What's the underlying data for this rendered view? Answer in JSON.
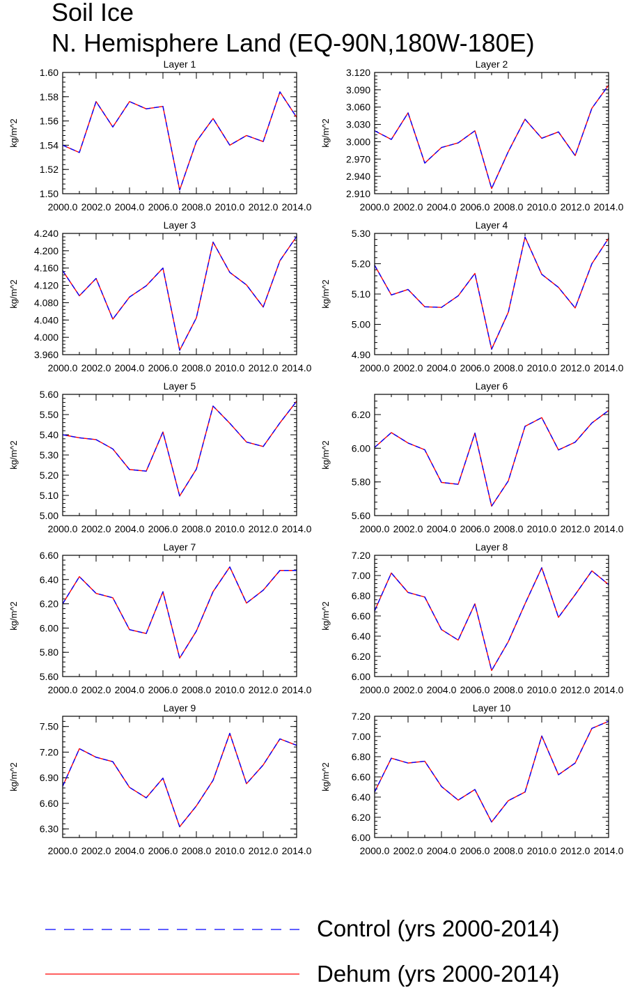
{
  "title_line1": "Soil Ice",
  "title_line2": "N. Hemisphere Land (EQ-90N,180W-180E)",
  "legend": [
    {
      "label": "Control (yrs 2000-2014)",
      "color": "#0000ff",
      "style": "dashed"
    },
    {
      "label": "Dehum (yrs 2000-2014)",
      "color": "#ff0000",
      "style": "solid"
    }
  ],
  "chart_data": [
    {
      "type": "line",
      "title": "Layer 1",
      "xlabel": "",
      "ylabel": "kg/m^2",
      "x": [
        2000,
        2001,
        2002,
        2003,
        2004,
        2005,
        2006,
        2007,
        2008,
        2009,
        2010,
        2011,
        2012,
        2013,
        2014
      ],
      "xticks": [
        "2000.0",
        "2002.0",
        "2004.0",
        "2006.0",
        "2008.0",
        "2010.0",
        "2012.0",
        "2014.0"
      ],
      "ylim": [
        1.5,
        1.6
      ],
      "yticks": [
        "1.50",
        "1.52",
        "1.54",
        "1.56",
        "1.58",
        "1.60"
      ],
      "series": [
        {
          "name": "Control (yrs 2000-2014)",
          "values": [
            1.54,
            1.534,
            1.576,
            1.555,
            1.576,
            1.57,
            1.572,
            1.503,
            1.543,
            1.562,
            1.54,
            1.548,
            1.543,
            1.584,
            1.563
          ]
        },
        {
          "name": "Dehum (yrs 2000-2014)",
          "values": [
            1.54,
            1.534,
            1.576,
            1.555,
            1.576,
            1.57,
            1.572,
            1.503,
            1.543,
            1.562,
            1.54,
            1.548,
            1.543,
            1.584,
            1.563
          ]
        }
      ]
    },
    {
      "type": "line",
      "title": "Layer 2",
      "xlabel": "",
      "ylabel": "kg/m^2",
      "x": [
        2000,
        2001,
        2002,
        2003,
        2004,
        2005,
        2006,
        2007,
        2008,
        2009,
        2010,
        2011,
        2012,
        2013,
        2014
      ],
      "xticks": [
        "2000.0",
        "2002.0",
        "2004.0",
        "2006.0",
        "2008.0",
        "2010.0",
        "2012.0",
        "2014.0"
      ],
      "ylim": [
        2.91,
        3.12
      ],
      "yticks": [
        "2.910",
        "2.940",
        "2.970",
        "3.000",
        "3.030",
        "3.060",
        "3.090",
        "3.120"
      ],
      "series": [
        {
          "name": "Control (yrs 2000-2014)",
          "values": [
            3.019,
            3.004,
            3.05,
            2.963,
            2.99,
            2.998,
            3.019,
            2.919,
            2.983,
            3.039,
            3.006,
            3.017,
            2.976,
            3.058,
            3.098
          ]
        },
        {
          "name": "Dehum (yrs 2000-2014)",
          "values": [
            3.019,
            3.004,
            3.05,
            2.963,
            2.99,
            2.998,
            3.019,
            2.919,
            2.983,
            3.039,
            3.006,
            3.017,
            2.976,
            3.058,
            3.098
          ]
        }
      ]
    },
    {
      "type": "line",
      "title": "Layer 3",
      "xlabel": "",
      "ylabel": "kg/m^2",
      "x": [
        2000,
        2001,
        2002,
        2003,
        2004,
        2005,
        2006,
        2007,
        2008,
        2009,
        2010,
        2011,
        2012,
        2013,
        2014
      ],
      "xticks": [
        "2000.0",
        "2002.0",
        "2004.0",
        "2006.0",
        "2008.0",
        "2010.0",
        "2012.0",
        "2014.0"
      ],
      "ylim": [
        3.96,
        4.24
      ],
      "yticks": [
        "3.960",
        "4.000",
        "4.040",
        "4.080",
        "4.120",
        "4.160",
        "4.200",
        "4.240"
      ],
      "series": [
        {
          "name": "Control (yrs 2000-2014)",
          "values": [
            4.154,
            4.096,
            4.136,
            4.042,
            4.093,
            4.119,
            4.16,
            3.97,
            4.045,
            4.22,
            4.15,
            4.121,
            4.07,
            4.177,
            4.233
          ]
        },
        {
          "name": "Dehum (yrs 2000-2014)",
          "values": [
            4.154,
            4.096,
            4.136,
            4.042,
            4.093,
            4.119,
            4.16,
            3.97,
            4.045,
            4.22,
            4.15,
            4.121,
            4.07,
            4.177,
            4.233
          ]
        }
      ]
    },
    {
      "type": "line",
      "title": "Layer 4",
      "xlabel": "",
      "ylabel": "kg/m^2",
      "x": [
        2000,
        2001,
        2002,
        2003,
        2004,
        2005,
        2006,
        2007,
        2008,
        2009,
        2010,
        2011,
        2012,
        2013,
        2014
      ],
      "xticks": [
        "2000.0",
        "2002.0",
        "2004.0",
        "2006.0",
        "2008.0",
        "2010.0",
        "2012.0",
        "2014.0"
      ],
      "ylim": [
        4.9,
        5.3
      ],
      "yticks": [
        "4.90",
        "5.00",
        "5.10",
        "5.20",
        "5.30"
      ],
      "series": [
        {
          "name": "Control (yrs 2000-2014)",
          "values": [
            5.195,
            5.097,
            5.115,
            5.058,
            5.056,
            5.094,
            5.168,
            4.918,
            5.04,
            5.288,
            5.165,
            5.122,
            5.054,
            5.2,
            5.284
          ]
        },
        {
          "name": "Dehum (yrs 2000-2014)",
          "values": [
            5.195,
            5.097,
            5.115,
            5.058,
            5.056,
            5.094,
            5.168,
            4.918,
            5.04,
            5.288,
            5.165,
            5.122,
            5.054,
            5.2,
            5.284
          ]
        }
      ]
    },
    {
      "type": "line",
      "title": "Layer 5",
      "xlabel": "",
      "ylabel": "kg/m^2",
      "x": [
        2000,
        2001,
        2002,
        2003,
        2004,
        2005,
        2006,
        2007,
        2008,
        2009,
        2010,
        2011,
        2012,
        2013,
        2014
      ],
      "xticks": [
        "2000.0",
        "2002.0",
        "2004.0",
        "2006.0",
        "2008.0",
        "2010.0",
        "2012.0",
        "2014.0"
      ],
      "ylim": [
        5.0,
        5.6
      ],
      "yticks": [
        "5.00",
        "5.10",
        "5.20",
        "5.30",
        "5.40",
        "5.50",
        "5.60"
      ],
      "series": [
        {
          "name": "Control (yrs 2000-2014)",
          "values": [
            5.4,
            5.385,
            5.376,
            5.33,
            5.228,
            5.22,
            5.414,
            5.097,
            5.23,
            5.542,
            5.457,
            5.364,
            5.342,
            5.459,
            5.566
          ]
        },
        {
          "name": "Dehum (yrs 2000-2014)",
          "values": [
            5.4,
            5.385,
            5.376,
            5.33,
            5.228,
            5.22,
            5.414,
            5.097,
            5.23,
            5.542,
            5.457,
            5.364,
            5.342,
            5.459,
            5.566
          ]
        }
      ]
    },
    {
      "type": "line",
      "title": "Layer 6",
      "xlabel": "",
      "ylabel": "kg/m^2",
      "x": [
        2000,
        2001,
        2002,
        2003,
        2004,
        2005,
        2006,
        2007,
        2008,
        2009,
        2010,
        2011,
        2012,
        2013,
        2014
      ],
      "xticks": [
        "2000.0",
        "2002.0",
        "2004.0",
        "2006.0",
        "2008.0",
        "2010.0",
        "2012.0",
        "2014.0"
      ],
      "ylim": [
        5.6,
        6.32
      ],
      "yticks": [
        "5.60",
        "5.80",
        "6.00",
        "6.20"
      ],
      "series": [
        {
          "name": "Control (yrs 2000-2014)",
          "values": [
            6.005,
            6.093,
            6.031,
            5.991,
            5.797,
            5.786,
            6.09,
            5.656,
            5.806,
            6.13,
            6.182,
            5.99,
            6.036,
            6.15,
            6.224
          ]
        },
        {
          "name": "Dehum (yrs 2000-2014)",
          "values": [
            6.005,
            6.093,
            6.031,
            5.991,
            5.797,
            5.786,
            6.09,
            5.656,
            5.806,
            6.13,
            6.182,
            5.99,
            6.036,
            6.15,
            6.224
          ]
        }
      ]
    },
    {
      "type": "line",
      "title": "Layer 7",
      "xlabel": "",
      "ylabel": "kg/m^2",
      "x": [
        2000,
        2001,
        2002,
        2003,
        2004,
        2005,
        2006,
        2007,
        2008,
        2009,
        2010,
        2011,
        2012,
        2013,
        2014
      ],
      "xticks": [
        "2000.0",
        "2002.0",
        "2004.0",
        "2006.0",
        "2008.0",
        "2010.0",
        "2012.0",
        "2014.0"
      ],
      "ylim": [
        5.6,
        6.6
      ],
      "yticks": [
        "5.60",
        "5.80",
        "6.00",
        "6.20",
        "6.40",
        "6.60"
      ],
      "series": [
        {
          "name": "Control (yrs 2000-2014)",
          "values": [
            6.2,
            6.424,
            6.286,
            6.25,
            5.987,
            5.955,
            6.3,
            5.752,
            5.975,
            6.3,
            6.504,
            6.206,
            6.312,
            6.475,
            6.475
          ]
        },
        {
          "name": "Dehum (yrs 2000-2014)",
          "values": [
            6.2,
            6.424,
            6.286,
            6.25,
            5.987,
            5.955,
            6.3,
            5.752,
            5.975,
            6.3,
            6.504,
            6.206,
            6.312,
            6.475,
            6.475
          ]
        }
      ]
    },
    {
      "type": "line",
      "title": "Layer 8",
      "xlabel": "",
      "ylabel": "kg/m^2",
      "x": [
        2000,
        2001,
        2002,
        2003,
        2004,
        2005,
        2006,
        2007,
        2008,
        2009,
        2010,
        2011,
        2012,
        2013,
        2014
      ],
      "xticks": [
        "2000.0",
        "2002.0",
        "2004.0",
        "2006.0",
        "2008.0",
        "2010.0",
        "2012.0",
        "2014.0"
      ],
      "ylim": [
        6.0,
        7.2
      ],
      "yticks": [
        "6.00",
        "6.20",
        "6.40",
        "6.60",
        "6.80",
        "7.00",
        "7.20"
      ],
      "series": [
        {
          "name": "Control (yrs 2000-2014)",
          "values": [
            6.65,
            7.025,
            6.832,
            6.787,
            6.465,
            6.361,
            6.72,
            6.06,
            6.346,
            6.72,
            7.077,
            6.586,
            6.811,
            7.046,
            6.911
          ]
        },
        {
          "name": "Dehum (yrs 2000-2014)",
          "values": [
            6.65,
            7.025,
            6.832,
            6.787,
            6.465,
            6.361,
            6.72,
            6.06,
            6.346,
            6.72,
            7.077,
            6.586,
            6.811,
            7.046,
            6.911
          ]
        }
      ]
    },
    {
      "type": "line",
      "title": "Layer 9",
      "xlabel": "",
      "ylabel": "kg/m^2",
      "x": [
        2000,
        2001,
        2002,
        2003,
        2004,
        2005,
        2006,
        2007,
        2008,
        2009,
        2010,
        2011,
        2012,
        2013,
        2014
      ],
      "xticks": [
        "2000.0",
        "2002.0",
        "2004.0",
        "2006.0",
        "2008.0",
        "2010.0",
        "2012.0",
        "2014.0"
      ],
      "ylim": [
        6.2,
        7.62
      ],
      "yticks": [
        "6.30",
        "6.60",
        "6.90",
        "7.20",
        "7.50"
      ],
      "series": [
        {
          "name": "Control (yrs 2000-2014)",
          "values": [
            6.8,
            7.24,
            7.14,
            7.088,
            6.787,
            6.665,
            6.895,
            6.326,
            6.57,
            6.87,
            7.42,
            6.83,
            7.05,
            7.355,
            7.28
          ]
        },
        {
          "name": "Dehum (yrs 2000-2014)",
          "values": [
            6.8,
            7.24,
            7.14,
            7.088,
            6.787,
            6.665,
            6.895,
            6.326,
            6.57,
            6.87,
            7.42,
            6.83,
            7.05,
            7.355,
            7.28
          ]
        }
      ]
    },
    {
      "type": "line",
      "title": "Layer 10",
      "xlabel": "",
      "ylabel": "kg/m^2",
      "x": [
        2000,
        2001,
        2002,
        2003,
        2004,
        2005,
        2006,
        2007,
        2008,
        2009,
        2010,
        2011,
        2012,
        2013,
        2014
      ],
      "xticks": [
        "2000.0",
        "2002.0",
        "2004.0",
        "2006.0",
        "2008.0",
        "2010.0",
        "2012.0",
        "2014.0"
      ],
      "ylim": [
        6.0,
        7.2
      ],
      "yticks": [
        "6.00",
        "6.20",
        "6.40",
        "6.60",
        "6.80",
        "7.00",
        "7.20"
      ],
      "series": [
        {
          "name": "Control (yrs 2000-2014)",
          "values": [
            6.45,
            6.785,
            6.737,
            6.755,
            6.505,
            6.37,
            6.475,
            6.153,
            6.365,
            6.45,
            7.005,
            6.621,
            6.737,
            7.08,
            7.15
          ]
        },
        {
          "name": "Dehum (yrs 2000-2014)",
          "values": [
            6.45,
            6.785,
            6.737,
            6.755,
            6.505,
            6.37,
            6.475,
            6.153,
            6.365,
            6.45,
            7.005,
            6.621,
            6.737,
            7.08,
            7.15
          ]
        }
      ]
    }
  ]
}
